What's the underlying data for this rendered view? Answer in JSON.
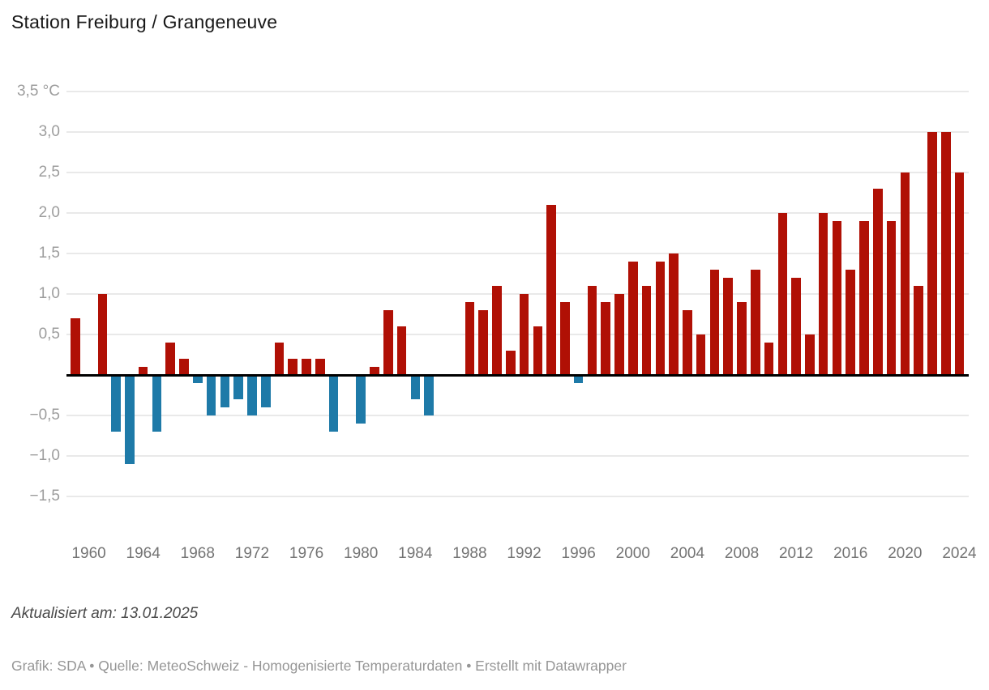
{
  "header": {
    "title": "Station Freiburg / Grangeneuve"
  },
  "footer": {
    "updated": "Aktualisiert am: 13.01.2025",
    "credits": "Grafik: SDA • Quelle: MeteoSchweiz - Homogenisierte Temperaturdaten • Erstellt mit Datawrapper"
  },
  "chart_data": {
    "type": "bar",
    "title": "Station Freiburg / Grangeneuve",
    "unit": "°C",
    "xlabel": "",
    "ylabel": "",
    "ylim": [
      -1.5,
      3.5
    ],
    "grid": "horizontal",
    "legend": "none",
    "colors": {
      "positive": "#b01005",
      "negative": "#1e7aa8",
      "zero_axis": "#000000",
      "gridline": "#e9e9e9"
    },
    "x": [
      1959,
      1960,
      1961,
      1962,
      1963,
      1964,
      1965,
      1966,
      1967,
      1968,
      1969,
      1970,
      1971,
      1972,
      1973,
      1974,
      1975,
      1976,
      1977,
      1978,
      1979,
      1980,
      1981,
      1982,
      1983,
      1984,
      1985,
      1986,
      1987,
      1988,
      1989,
      1990,
      1991,
      1992,
      1993,
      1994,
      1995,
      1996,
      1997,
      1998,
      1999,
      2000,
      2001,
      2002,
      2003,
      2004,
      2005,
      2006,
      2007,
      2008,
      2009,
      2010,
      2011,
      2012,
      2013,
      2014,
      2015,
      2016,
      2017,
      2018,
      2019,
      2020,
      2021,
      2022,
      2023,
      2024
    ],
    "values": [
      0.7,
      0,
      1.0,
      -0.7,
      -1.1,
      0.1,
      -0.7,
      0.4,
      0.2,
      -0.1,
      -0.5,
      -0.4,
      -0.3,
      -0.5,
      -0.4,
      0.4,
      0.2,
      0.2,
      0.2,
      -0.7,
      0,
      -0.6,
      0.1,
      0.8,
      0.6,
      -0.3,
      -0.5,
      0,
      0,
      0.9,
      0.8,
      1.1,
      0.3,
      1.0,
      0.6,
      2.1,
      0.9,
      -0.1,
      1.1,
      0.9,
      1.0,
      1.4,
      1.1,
      1.4,
      1.5,
      0.8,
      0.5,
      1.3,
      1.2,
      0.9,
      1.3,
      0.4,
      2.0,
      1.2,
      0.5,
      2.0,
      1.9,
      1.3,
      1.9,
      2.3,
      1.9,
      2.5,
      1.1,
      3.0,
      3.0,
      2.5
    ],
    "y_ticks": [
      {
        "value": 3.5,
        "label": "3,5 °C"
      },
      {
        "value": 3.0,
        "label": "3,0"
      },
      {
        "value": 2.5,
        "label": "2,5"
      },
      {
        "value": 2.0,
        "label": "2,0"
      },
      {
        "value": 1.5,
        "label": "1,5"
      },
      {
        "value": 1.0,
        "label": "1,0"
      },
      {
        "value": 0.5,
        "label": "0,5"
      },
      {
        "value": 0.0,
        "label": ""
      },
      {
        "value": -0.5,
        "label": "−0,5"
      },
      {
        "value": -1.0,
        "label": "−1,0"
      },
      {
        "value": -1.5,
        "label": "−1,5"
      }
    ],
    "x_ticks": [
      1960,
      1964,
      1968,
      1972,
      1976,
      1980,
      1984,
      1988,
      1992,
      1996,
      2000,
      2004,
      2008,
      2012,
      2016,
      2020,
      2024
    ]
  }
}
